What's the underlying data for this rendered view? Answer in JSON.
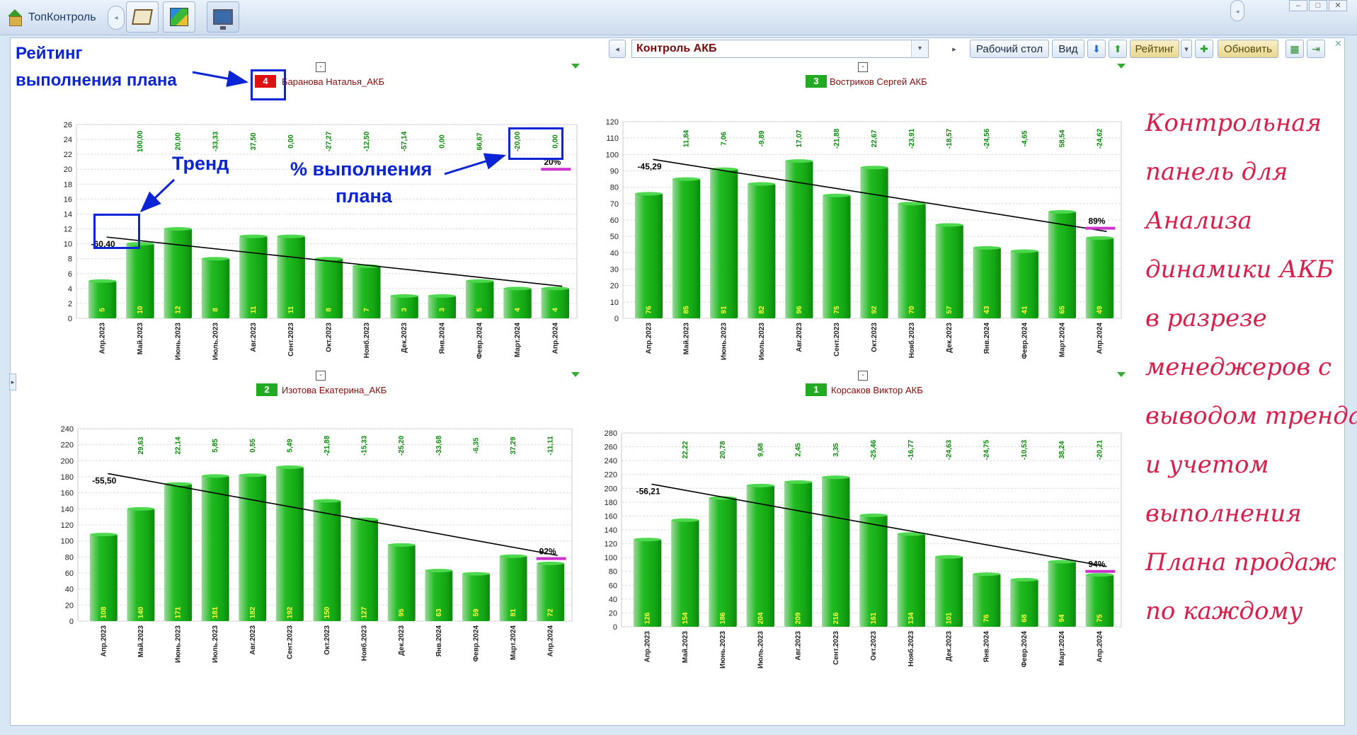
{
  "app": {
    "title": "ТопКонтроль"
  },
  "window": {
    "minimize": "‒",
    "maximize": "□",
    "close": "✕"
  },
  "toolbar": {
    "report": "Контроль АКБ",
    "desktop_label": "Рабочий стол",
    "view_label": "Вид",
    "rating_label": "Рейтинг",
    "refresh_label": "Обновить"
  },
  "annotations": {
    "rating_line1": "Рейтинг",
    "rating_line2": "выполнения плана",
    "trend": "Тренд",
    "pct_line1": "% выполнения",
    "pct_line2": "плана",
    "accent": "#0a24d6"
  },
  "handwritten_note": [
    "Контрольная",
    "панель для",
    "Анализа",
    "динамики АКБ",
    "в разрезе",
    "менеджеров с",
    "выводом тренда",
    "и учетом",
    "выполнения",
    "Плана продаж",
    "по каждому"
  ],
  "colors": {
    "bar": "#22bb22",
    "bar_dark": "#0c8a0c",
    "plan_mark": "#cc33cc",
    "growth": "#0a8a0a",
    "rank_red": "#e01010",
    "rank_green": "#22aa22",
    "handwriting": "#d81e4a"
  },
  "months": [
    "Апр.2023",
    "Май.2023",
    "Июнь.2023",
    "Июль.2023",
    "Авг.2023",
    "Сент.2023",
    "Окт.2023",
    "Нояб.2023",
    "Дек.2023",
    "Янв.2024",
    "Февр.2024",
    "Март.2024",
    "Апр.2024"
  ],
  "managers": [
    {
      "rank": "4",
      "rank_color": "#e01010",
      "name": "Баранова Наталья_АКБ",
      "chart_data": {
        "type": "bar",
        "categories": [
          "Апр.2023",
          "Май.2023",
          "Июнь.2023",
          "Июль.2023",
          "Авг.2023",
          "Сент.2023",
          "Окт.2023",
          "Нояб.2023",
          "Дек.2023",
          "Янв.2024",
          "Февр.2024",
          "Март.2024",
          "Апр.2024"
        ],
        "values": [
          5,
          10,
          12,
          8,
          11,
          11,
          8,
          7,
          3,
          3,
          5,
          4,
          4
        ],
        "growth": [
          "",
          "100,00",
          "20,00",
          "-33,33",
          "37,50",
          "0,00",
          "-27,27",
          "-12,50",
          "-57,14",
          "0,00",
          "66,67",
          "-20,00",
          "0,00"
        ],
        "trend_label": "-60,40",
        "trend": [
          10.9,
          4.3
        ],
        "plan_pct": "20%",
        "plan_value": 20,
        "ylim": [
          0,
          26
        ],
        "ystep": 2
      }
    },
    {
      "rank": "3",
      "rank_color": "#22aa22",
      "name": "Востриков Сергей АКБ",
      "chart_data": {
        "type": "bar",
        "categories": [
          "Апр.2023",
          "Май.2023",
          "Июнь.2023",
          "Июль.2023",
          "Авг.2023",
          "Сент.2023",
          "Окт.2023",
          "Нояб.2023",
          "Дек.2023",
          "Янв.2024",
          "Февр.2024",
          "Март.2024",
          "Апр.2024"
        ],
        "values": [
          76,
          85,
          91,
          82,
          96,
          75,
          92,
          70,
          57,
          43,
          41,
          65,
          49
        ],
        "growth": [
          "",
          "11,84",
          "7,06",
          "-9,89",
          "17,07",
          "-21,88",
          "22,67",
          "-23,91",
          "-18,57",
          "-24,56",
          "-4,65",
          "58,54",
          "-24,62"
        ],
        "trend_label": "-45,29",
        "trend": [
          97,
          53
        ],
        "plan_pct": "89%",
        "plan_value": 55,
        "ylim": [
          0,
          120
        ],
        "ystep": 10
      }
    },
    {
      "rank": "2",
      "rank_color": "#22aa22",
      "name": "Изотова Екатерина_АКБ",
      "chart_data": {
        "type": "bar",
        "categories": [
          "Апр.2023",
          "Май.2023",
          "Июнь.2023",
          "Июль.2023",
          "Авг.2023",
          "Сент.2023",
          "Окт.2023",
          "Нояб.2023",
          "Дек.2023",
          "Янв.2024",
          "Февр.2024",
          "Март.2024",
          "Апр.2024"
        ],
        "values": [
          108,
          140,
          171,
          181,
          182,
          192,
          150,
          127,
          95,
          63,
          59,
          81,
          72
        ],
        "growth": [
          "",
          "29,63",
          "22,14",
          "5,85",
          "0,55",
          "5,49",
          "-21,88",
          "-15,33",
          "-25,20",
          "-33,68",
          "-6,35",
          "37,29",
          "-11,11"
        ],
        "trend_label": "-55,50",
        "trend": [
          184,
          82
        ],
        "plan_pct": "92%",
        "plan_value": 78,
        "ylim": [
          0,
          240
        ],
        "ystep": 20
      }
    },
    {
      "rank": "1",
      "rank_color": "#22aa22",
      "name": "Корсаков Виктор АКБ",
      "chart_data": {
        "type": "bar",
        "categories": [
          "Апр.2023",
          "Май.2023",
          "Июнь.2023",
          "Июль.2023",
          "Авг.2023",
          "Сент.2023",
          "Окт.2023",
          "Нояб.2023",
          "Дек.2023",
          "Янв.2024",
          "Февр.2024",
          "Март.2024",
          "Апр.2024"
        ],
        "values": [
          126,
          154,
          186,
          204,
          209,
          216,
          161,
          134,
          101,
          76,
          68,
          94,
          75
        ],
        "growth": [
          "",
          "22,22",
          "20,78",
          "9,68",
          "2,45",
          "3,35",
          "-25,46",
          "-16,77",
          "-24,63",
          "-24,75",
          "-10,53",
          "38,24",
          "-20,21"
        ],
        "trend_label": "-56,21",
        "trend": [
          206,
          87
        ],
        "plan_pct": "94%",
        "plan_value": 80,
        "ylim": [
          0,
          280
        ],
        "ystep": 20
      }
    }
  ]
}
